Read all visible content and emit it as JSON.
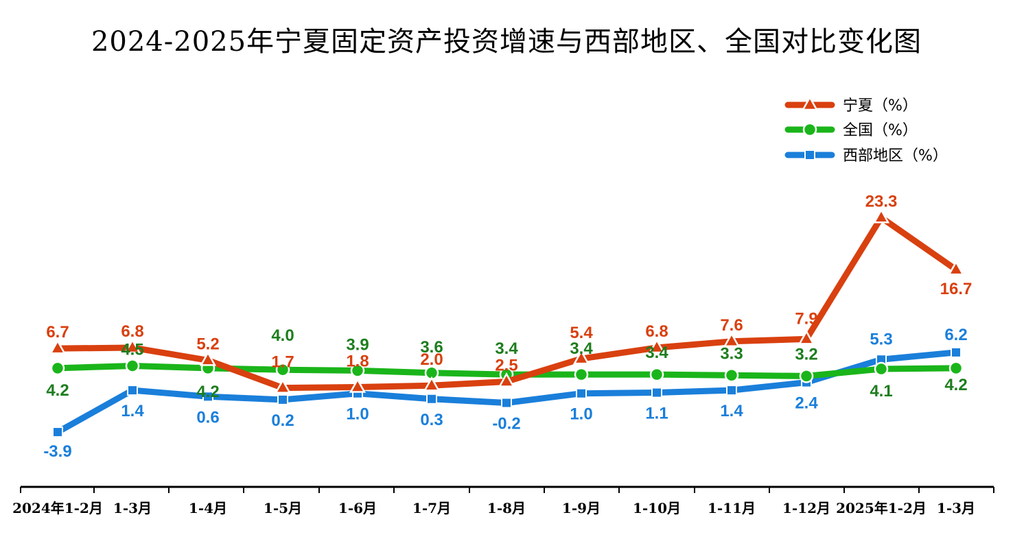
{
  "chart_data": {
    "type": "line",
    "title": "2024-2025年宁夏固定资产投资增速与西部地区、全国对比变化图",
    "categories": [
      "2024年1-2月",
      "1-3月",
      "1-4月",
      "1-5月",
      "1-6月",
      "1-7月",
      "1-8月",
      "1-9月",
      "1-10月",
      "1-11月",
      "1-12月",
      "2025年1-2月",
      "1-3月"
    ],
    "series": [
      {
        "name": "宁夏（%）",
        "color": "#D9400F",
        "marker": "triangle",
        "values": [
          6.7,
          6.8,
          5.2,
          1.7,
          1.8,
          2.0,
          2.5,
          5.4,
          6.8,
          7.6,
          7.9,
          23.3,
          16.7
        ]
      },
      {
        "name": "全国（%）",
        "color": "#1AB51A",
        "label_color": "#1E7D1E",
        "marker": "circle",
        "values": [
          4.2,
          4.5,
          4.2,
          4.0,
          3.9,
          3.6,
          3.4,
          3.4,
          3.4,
          3.3,
          3.2,
          4.1,
          4.2
        ]
      },
      {
        "name": "西部地区（%）",
        "color": "#1A7FDA",
        "marker": "square",
        "values": [
          -3.9,
          1.4,
          0.6,
          0.2,
          1.0,
          0.3,
          -0.2,
          1.0,
          1.1,
          1.4,
          2.4,
          5.3,
          6.2
        ]
      }
    ],
    "legend_position": "top-right",
    "grid": false
  }
}
